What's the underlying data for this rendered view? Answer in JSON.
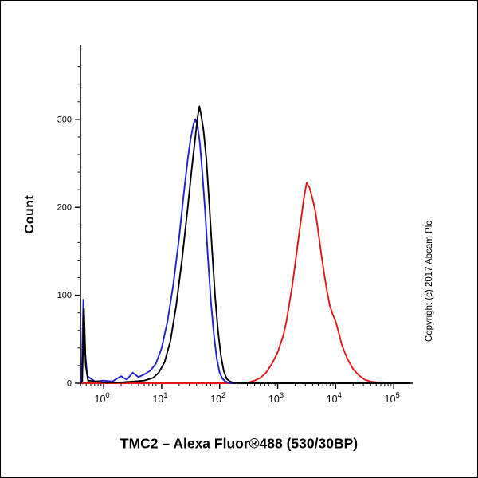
{
  "figure": {
    "title": "TMC2 – Alexa Fluor®488 (530/30BP)",
    "ylabel": "Count",
    "watermark": "Copyright (c) 2017 Abcam Plc"
  },
  "chart_data": {
    "type": "line",
    "subtype": "flow-cytometry-histogram",
    "title": "TMC2 – Alexa Fluor®488 (530/30BP)",
    "xlabel": "",
    "ylabel": "Count",
    "x_scale": "log10",
    "xlog_range": [
      -0.4,
      5.3
    ],
    "ylim": [
      0,
      385
    ],
    "yticks": [
      0,
      100,
      200,
      300
    ],
    "ytick_minor_step": 20,
    "xtick_exponents": [
      0,
      1,
      2,
      3,
      4,
      5
    ],
    "grid": "off",
    "legend": "none",
    "series": [
      {
        "name": "red-sample",
        "color": "#e01818",
        "points": [
          [
            -0.4,
            0
          ],
          [
            1.0,
            0
          ],
          [
            2.0,
            0
          ],
          [
            2.4,
            0
          ],
          [
            2.5,
            1
          ],
          [
            2.6,
            3
          ],
          [
            2.7,
            6
          ],
          [
            2.8,
            12
          ],
          [
            2.9,
            22
          ],
          [
            3.0,
            35
          ],
          [
            3.1,
            55
          ],
          [
            3.15,
            70
          ],
          [
            3.2,
            90
          ],
          [
            3.25,
            110
          ],
          [
            3.3,
            135
          ],
          [
            3.35,
            160
          ],
          [
            3.4,
            185
          ],
          [
            3.45,
            210
          ],
          [
            3.5,
            228
          ],
          [
            3.55,
            222
          ],
          [
            3.6,
            210
          ],
          [
            3.65,
            195
          ],
          [
            3.7,
            172
          ],
          [
            3.75,
            148
          ],
          [
            3.8,
            125
          ],
          [
            3.85,
            105
          ],
          [
            3.9,
            88
          ],
          [
            3.95,
            78
          ],
          [
            4.0,
            70
          ],
          [
            4.05,
            58
          ],
          [
            4.1,
            45
          ],
          [
            4.15,
            36
          ],
          [
            4.2,
            28
          ],
          [
            4.3,
            16
          ],
          [
            4.4,
            9
          ],
          [
            4.5,
            4
          ],
          [
            4.6,
            2
          ],
          [
            4.7,
            1
          ],
          [
            4.85,
            0
          ],
          [
            5.28,
            0
          ]
        ]
      },
      {
        "name": "blue-control",
        "color": "#2020cc",
        "points": [
          [
            -0.4,
            0
          ],
          [
            -0.38,
            6
          ],
          [
            -0.35,
            95
          ],
          [
            -0.32,
            35
          ],
          [
            -0.28,
            8
          ],
          [
            -0.15,
            2
          ],
          [
            0.0,
            3
          ],
          [
            0.15,
            2
          ],
          [
            0.3,
            8
          ],
          [
            0.4,
            4
          ],
          [
            0.5,
            12
          ],
          [
            0.6,
            7
          ],
          [
            0.7,
            10
          ],
          [
            0.8,
            14
          ],
          [
            0.9,
            22
          ],
          [
            1.0,
            40
          ],
          [
            1.1,
            70
          ],
          [
            1.2,
            112
          ],
          [
            1.3,
            165
          ],
          [
            1.38,
            215
          ],
          [
            1.45,
            255
          ],
          [
            1.5,
            278
          ],
          [
            1.55,
            295
          ],
          [
            1.58,
            300
          ],
          [
            1.62,
            292
          ],
          [
            1.66,
            272
          ],
          [
            1.7,
            240
          ],
          [
            1.75,
            195
          ],
          [
            1.8,
            140
          ],
          [
            1.85,
            92
          ],
          [
            1.9,
            55
          ],
          [
            1.95,
            28
          ],
          [
            2.0,
            12
          ],
          [
            2.05,
            5
          ],
          [
            2.1,
            2
          ],
          [
            2.18,
            0
          ],
          [
            3.0,
            0
          ],
          [
            5.28,
            0
          ]
        ]
      },
      {
        "name": "black-control",
        "color": "#000000",
        "points": [
          [
            -0.4,
            0
          ],
          [
            -0.37,
            2
          ],
          [
            -0.34,
            85
          ],
          [
            -0.31,
            20
          ],
          [
            -0.27,
            3
          ],
          [
            0.0,
            1
          ],
          [
            0.3,
            1
          ],
          [
            0.5,
            2
          ],
          [
            0.7,
            3
          ],
          [
            0.85,
            6
          ],
          [
            0.95,
            12
          ],
          [
            1.05,
            24
          ],
          [
            1.15,
            48
          ],
          [
            1.25,
            88
          ],
          [
            1.35,
            140
          ],
          [
            1.45,
            200
          ],
          [
            1.52,
            245
          ],
          [
            1.58,
            280
          ],
          [
            1.62,
            303
          ],
          [
            1.65,
            315
          ],
          [
            1.68,
            305
          ],
          [
            1.72,
            288
          ],
          [
            1.77,
            255
          ],
          [
            1.82,
            205
          ],
          [
            1.87,
            150
          ],
          [
            1.92,
            100
          ],
          [
            1.97,
            60
          ],
          [
            2.02,
            32
          ],
          [
            2.07,
            14
          ],
          [
            2.12,
            5
          ],
          [
            2.18,
            2
          ],
          [
            2.25,
            0
          ],
          [
            3.0,
            0
          ],
          [
            5.28,
            0
          ]
        ]
      }
    ]
  }
}
